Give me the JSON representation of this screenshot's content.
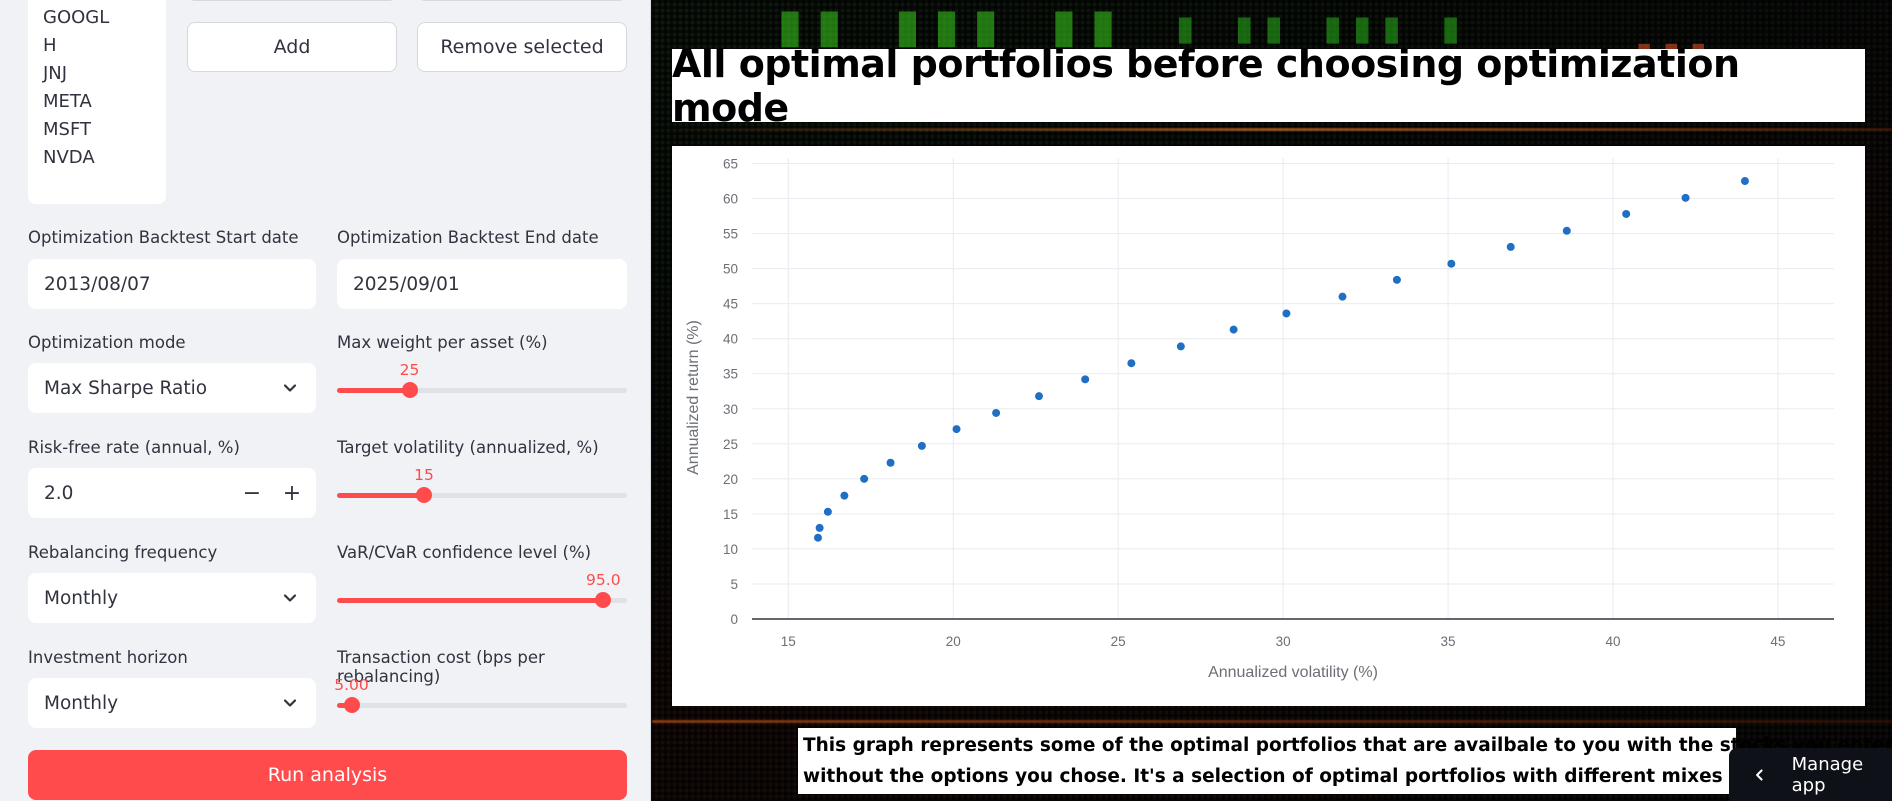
{
  "sidebar": {
    "tickers": [
      "GOOGL",
      "H",
      "JNJ",
      "META",
      "MSFT",
      "NVDA"
    ],
    "add_label": "Add",
    "remove_label": "Remove selected",
    "start_date": {
      "label": "Optimization Backtest Start date",
      "value": "2013/08/07"
    },
    "end_date": {
      "label": "Optimization Backtest End date",
      "value": "2025/09/01"
    },
    "optimization_mode": {
      "label": "Optimization mode",
      "value": "Max Sharpe Ratio"
    },
    "max_weight": {
      "label": "Max weight per asset (%)",
      "value": "25",
      "min": 0,
      "max": 100,
      "level": 25
    },
    "risk_free": {
      "label": "Risk-free rate (annual, %)",
      "value": "2.0",
      "minus": "−",
      "plus": "+"
    },
    "target_vol": {
      "label": "Target volatility (annualized, %)",
      "value": "15",
      "min": 0,
      "max": 50,
      "level": 15
    },
    "rebalancing": {
      "label": "Rebalancing frequency",
      "value": "Monthly"
    },
    "var_conf": {
      "label": "VaR/CVaR confidence level (%)",
      "value": "95.0",
      "min": 50,
      "max": 99,
      "level": 95
    },
    "horizon": {
      "label": "Investment horizon",
      "value": "Monthly"
    },
    "tx_cost": {
      "label": "Transaction cost (bps per rebalancing)",
      "value": "5.00",
      "min": 0,
      "max": 100,
      "level": 5
    },
    "run_label": "Run analysis"
  },
  "main": {
    "chart_title": "All optimal portfolios before choosing optimization mode",
    "description_lines": [
      "This graph represents some of the optimal portfolios that are availbale to you with the stocks you entered",
      "without the options you chose. It's a selection of optimal portfolios with different mixes of risk and return"
    ],
    "manage_app_label": "Manage app"
  },
  "colors": {
    "accent": "#ff4b4b",
    "point": "#1f6fc5",
    "sidebar_bg": "#f0f2f6"
  },
  "icons": {
    "select_chevron": "chevron-down-icon",
    "manage_chevron": "chevron-left-icon"
  },
  "chart_data": {
    "type": "scatter",
    "title": "",
    "xlabel": "Annualized volatility (%)",
    "ylabel": "Annualized return (%)",
    "xlim": [
      13.9,
      46.7
    ],
    "ylim": [
      0,
      67.5
    ],
    "xticks": [
      15,
      20,
      25,
      30,
      35,
      40,
      45
    ],
    "yticks": [
      0,
      5,
      10,
      15,
      20,
      25,
      30,
      35,
      40,
      45,
      50,
      55,
      60,
      65
    ],
    "grid": true,
    "points": [
      [
        15.9,
        11.6
      ],
      [
        15.95,
        13.0
      ],
      [
        16.2,
        15.3
      ],
      [
        16.7,
        17.6
      ],
      [
        17.3,
        20.0
      ],
      [
        18.1,
        22.3
      ],
      [
        19.05,
        24.7
      ],
      [
        20.1,
        27.1
      ],
      [
        21.3,
        29.4
      ],
      [
        22.6,
        31.8
      ],
      [
        24.0,
        34.2
      ],
      [
        25.4,
        36.5
      ],
      [
        26.9,
        38.9
      ],
      [
        28.5,
        41.3
      ],
      [
        30.1,
        43.6
      ],
      [
        31.8,
        46.0
      ],
      [
        33.45,
        48.4
      ],
      [
        35.1,
        50.7
      ],
      [
        36.9,
        53.1
      ],
      [
        38.6,
        55.4
      ],
      [
        40.4,
        57.8
      ],
      [
        42.2,
        60.1
      ],
      [
        44.0,
        62.5
      ]
    ]
  }
}
